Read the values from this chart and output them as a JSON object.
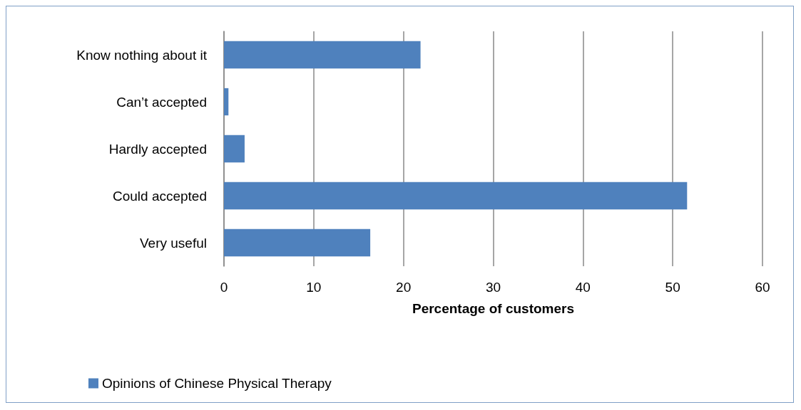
{
  "chart_data": {
    "type": "bar",
    "orientation": "horizontal",
    "xlabel": "Percentage of customers",
    "categories": [
      "Know nothing about it",
      "Can’t accepted",
      "Hardly accepted",
      "Could accepted",
      "Very useful"
    ],
    "series": [
      {
        "name": "Opinions of Chinese Physical Therapy",
        "color": "#4f81bd",
        "values": [
          21.9,
          0.5,
          2.3,
          51.6,
          16.3
        ]
      }
    ],
    "xlim": [
      0,
      60
    ],
    "xticks": [
      0,
      10,
      20,
      30,
      40,
      50,
      60
    ],
    "grid": "x",
    "legend": "bottom left"
  }
}
